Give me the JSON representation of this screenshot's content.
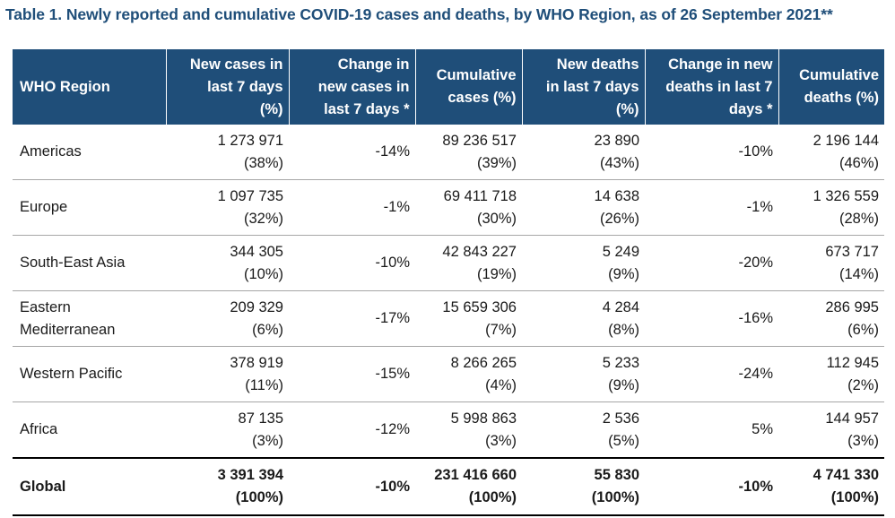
{
  "title": "Table 1. Newly reported and cumulative COVID-19 cases and deaths, by WHO Region, as of 26 September 2021**",
  "headers": [
    [
      "WHO Region"
    ],
    [
      "New cases in",
      "last 7 days",
      "(%)"
    ],
    [
      "Change in",
      "new cases in",
      "last 7 days *"
    ],
    [
      "Cumulative",
      "cases (%)"
    ],
    [
      "New deaths",
      "in last 7 days",
      "(%)"
    ],
    [
      "Change in new",
      "deaths in last 7",
      "days *"
    ],
    [
      "Cumulative",
      "deaths (%)"
    ]
  ],
  "rows": [
    {
      "region": [
        "Americas"
      ],
      "new_cases": "1 273 971",
      "new_cases_pct": "(38%)",
      "change_cases": "-14%",
      "cum_cases": "89 236 517",
      "cum_cases_pct": "(39%)",
      "new_deaths": "23 890",
      "new_deaths_pct": "(43%)",
      "change_deaths": "-10%",
      "cum_deaths": "2 196 144",
      "cum_deaths_pct": "(46%)"
    },
    {
      "region": [
        "Europe"
      ],
      "new_cases": "1 097 735",
      "new_cases_pct": "(32%)",
      "change_cases": "-1%",
      "cum_cases": "69 411 718",
      "cum_cases_pct": "(30%)",
      "new_deaths": "14 638",
      "new_deaths_pct": "(26%)",
      "change_deaths": "-1%",
      "cum_deaths": "1 326 559",
      "cum_deaths_pct": "(28%)"
    },
    {
      "region": [
        "South-East Asia"
      ],
      "new_cases": "344 305",
      "new_cases_pct": "(10%)",
      "change_cases": "-10%",
      "cum_cases": "42 843 227",
      "cum_cases_pct": "(19%)",
      "new_deaths": "5 249",
      "new_deaths_pct": "(9%)",
      "change_deaths": "-20%",
      "cum_deaths": "673 717",
      "cum_deaths_pct": "(14%)"
    },
    {
      "region": [
        "Eastern",
        "Mediterranean"
      ],
      "new_cases": "209 329",
      "new_cases_pct": "(6%)",
      "change_cases": "-17%",
      "cum_cases": "15 659 306",
      "cum_cases_pct": "(7%)",
      "new_deaths": "4 284",
      "new_deaths_pct": "(8%)",
      "change_deaths": "-16%",
      "cum_deaths": "286 995",
      "cum_deaths_pct": "(6%)"
    },
    {
      "region": [
        "Western Pacific"
      ],
      "new_cases": "378 919",
      "new_cases_pct": "(11%)",
      "change_cases": "-15%",
      "cum_cases": "8 266 265",
      "cum_cases_pct": "(4%)",
      "new_deaths": "5 233",
      "new_deaths_pct": "(9%)",
      "change_deaths": "-24%",
      "cum_deaths": "112 945",
      "cum_deaths_pct": "(2%)"
    },
    {
      "region": [
        "Africa"
      ],
      "new_cases": "87 135",
      "new_cases_pct": "(3%)",
      "change_cases": "-12%",
      "cum_cases": "5 998 863",
      "cum_cases_pct": "(3%)",
      "new_deaths": "2 536",
      "new_deaths_pct": "(5%)",
      "change_deaths": "5%",
      "cum_deaths": "144 957",
      "cum_deaths_pct": "(3%)"
    }
  ],
  "global": {
    "region": [
      "Global"
    ],
    "new_cases": "3 391 394",
    "new_cases_pct": "(100%)",
    "change_cases": "-10%",
    "cum_cases": "231 416 660",
    "cum_cases_pct": "(100%)",
    "new_deaths": "55 830",
    "new_deaths_pct": "(100%)",
    "change_deaths": "-10%",
    "cum_deaths": "4 741 330",
    "cum_deaths_pct": "(100%)"
  },
  "colors": {
    "header_bg": "#1f4e79",
    "title": "#1f4e79"
  }
}
